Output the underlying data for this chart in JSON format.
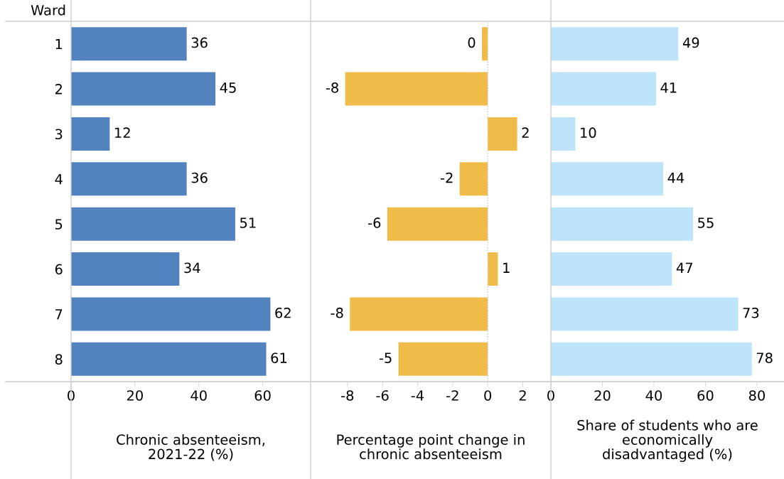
{
  "chart_data": [
    {
      "type": "bar",
      "orientation": "horizontal",
      "ylabel": "Ward",
      "xlabel": "Chronic absenteeism,\n2021-22 (%)",
      "categories": [
        "1",
        "2",
        "3",
        "4",
        "5",
        "6",
        "7",
        "8"
      ],
      "values": [
        36.2,
        45.2,
        12.1,
        36.2,
        51.4,
        33.9,
        62.4,
        61.1
      ],
      "color": "#5383be",
      "value_labels": [
        "36",
        "45",
        "12",
        "36",
        "51",
        "34",
        "62",
        "61"
      ],
      "xlim": [
        0,
        75
      ],
      "xticks": [
        0,
        20,
        40,
        60
      ]
    },
    {
      "type": "bar",
      "orientation": "horizontal",
      "xlabel": "Percentage point change in\nchronic absenteeism",
      "categories": [
        "1",
        "2",
        "3",
        "4",
        "5",
        "6",
        "7",
        "8"
      ],
      "values": [
        -0.33,
        -8.13,
        1.68,
        -1.6,
        -5.73,
        0.58,
        -7.86,
        -5.09
      ],
      "color": "#efbc4a",
      "value_labels": [
        "0",
        "-8",
        "2",
        "-2",
        "-6",
        "1",
        "-8",
        "-5"
      ],
      "xlim": [
        -10.1,
        3.6
      ],
      "xticks": [
        -8,
        -6,
        -4,
        -2,
        0,
        2
      ],
      "tick_labels": "x",
      "ref_lines": [
        {
          "axis": "x",
          "value": 0,
          "color": "#c8c8c8",
          "line_style": "dotted"
        }
      ]
    },
    {
      "type": "bar",
      "orientation": "horizontal",
      "xlabel": "Share of students who are\neconomically\ndisadvantaged (%)",
      "categories": [
        "1",
        "2",
        "3",
        "4",
        "5",
        "6",
        "7",
        "8"
      ],
      "values": [
        49.5,
        40.8,
        9.5,
        43.6,
        55.2,
        47,
        72.7,
        78
      ],
      "color": "#bde4f8",
      "value_labels": [
        "49",
        "41",
        "10",
        "44",
        "55",
        "47",
        "73",
        "78"
      ],
      "xlim": [
        0,
        90.5
      ],
      "xticks": [
        0,
        20,
        40,
        60,
        80
      ],
      "tick_labels": "x"
    }
  ]
}
